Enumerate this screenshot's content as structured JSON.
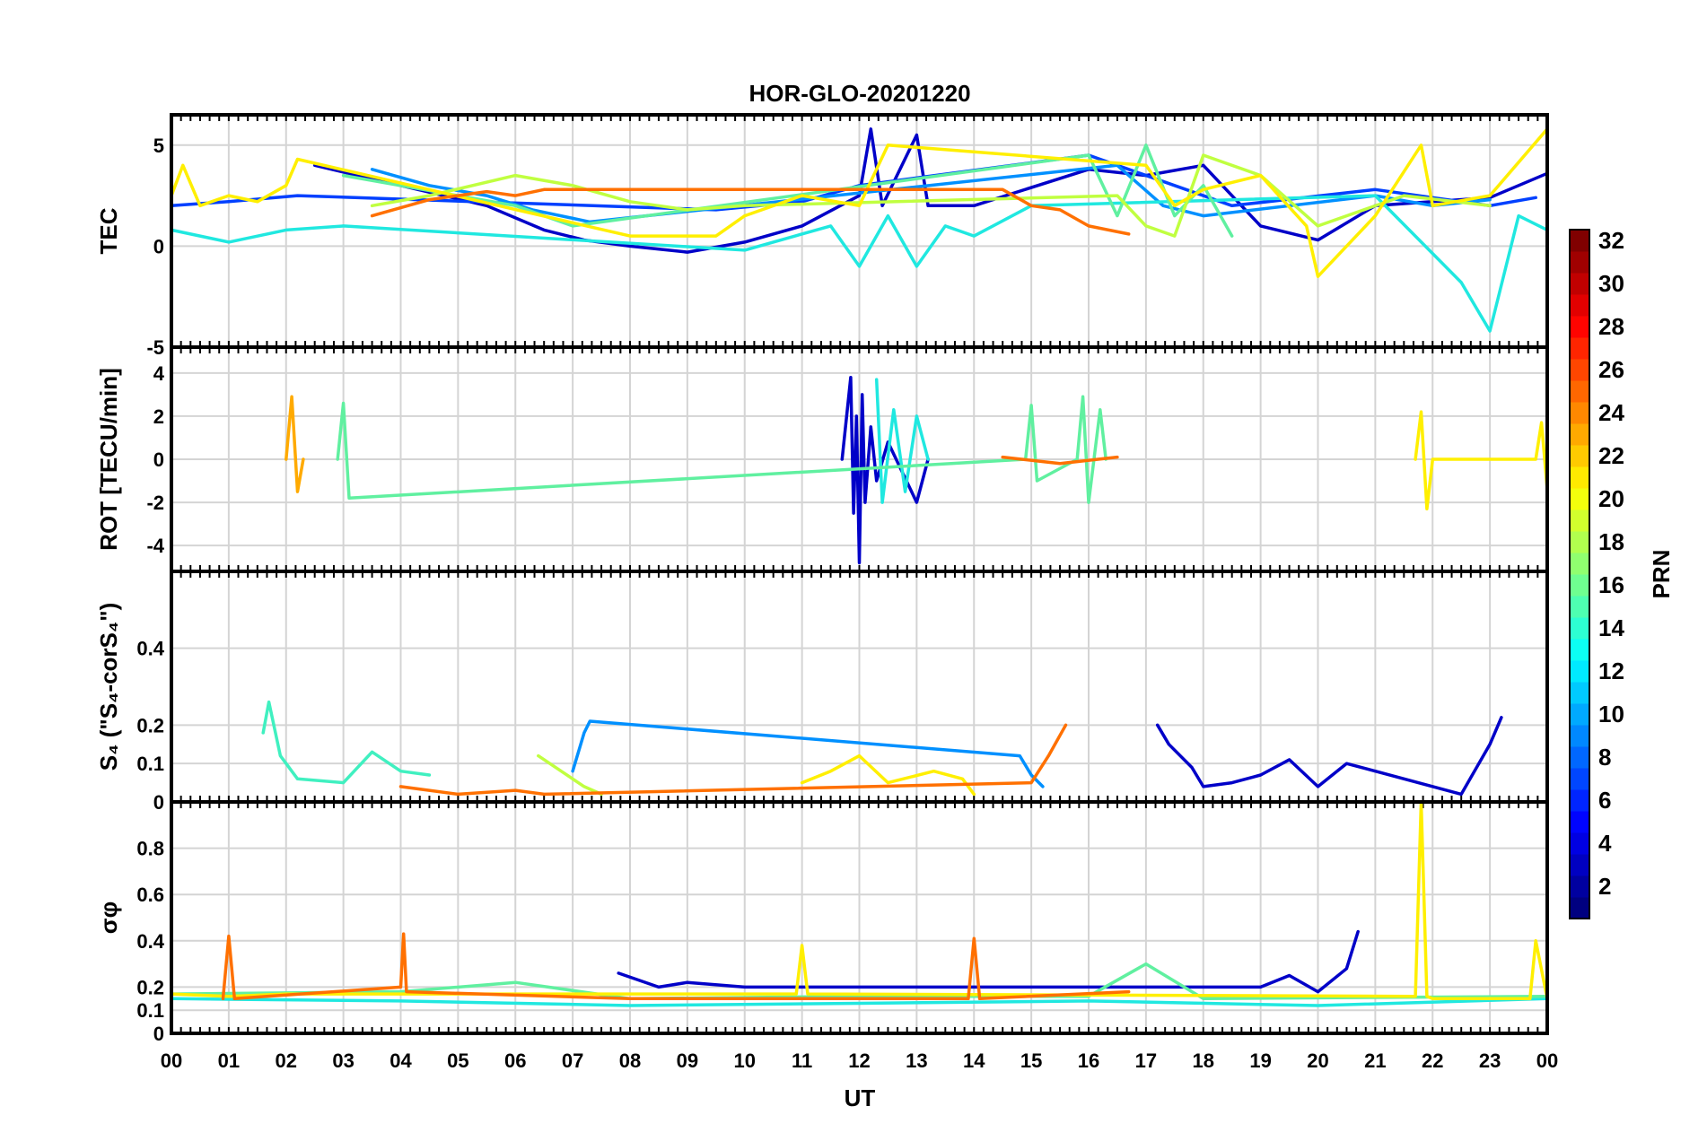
{
  "chart_data": {
    "type": "line",
    "title": "HOR-GLO-20201220",
    "xlabel": "UT",
    "x_ticks": [
      "00",
      "01",
      "02",
      "03",
      "04",
      "05",
      "06",
      "07",
      "08",
      "09",
      "10",
      "11",
      "12",
      "13",
      "14",
      "15",
      "16",
      "17",
      "18",
      "19",
      "20",
      "21",
      "22",
      "23",
      "00"
    ],
    "xlim_hours": [
      0,
      24
    ],
    "grid": true,
    "colorbar": {
      "label": "PRN",
      "range": [
        1,
        32
      ],
      "ticks": [
        "2",
        "4",
        "6",
        "8",
        "10",
        "12",
        "14",
        "16",
        "18",
        "20",
        "22",
        "24",
        "26",
        "28",
        "30",
        "32"
      ],
      "colormap": "jet"
    },
    "panels": [
      {
        "id": "tec",
        "ylabel": "TEC",
        "ylim": [
          -5,
          6.5
        ],
        "yticks": [
          {
            "v": -5,
            "label": "-5"
          },
          {
            "v": 0,
            "label": "0"
          },
          {
            "v": 5,
            "label": "5"
          }
        ],
        "series": [
          {
            "prn": 2,
            "color": "#0000c8",
            "x": [
              2.5,
              4.0,
              5.5,
              6.5,
              7.2,
              8.0,
              9.0,
              10.0,
              11.0,
              12.0,
              12.2,
              12.4,
              13.0,
              13.2,
              14.0,
              16.0,
              17.0,
              18.0,
              19.0,
              20.0,
              21.0,
              22.0,
              23.0,
              24.0
            ],
            "y": [
              4.0,
              3.0,
              2.0,
              0.8,
              0.3,
              0.0,
              -0.3,
              0.2,
              1.0,
              2.5,
              5.8,
              2.0,
              5.5,
              2.0,
              2.0,
              3.8,
              3.5,
              4.0,
              1.0,
              0.3,
              2.0,
              2.2,
              2.4,
              3.6
            ]
          },
          {
            "prn": 4,
            "color": "#0040ff",
            "x": [
              0.0,
              1.0,
              2.2,
              9.5,
              11.0,
              12.0,
              16.0,
              17.5,
              18.5,
              21.0,
              23.0,
              23.8
            ],
            "y": [
              2.0,
              2.2,
              2.5,
              1.8,
              2.2,
              3.0,
              4.5,
              3.0,
              2.0,
              2.8,
              2.0,
              2.4
            ]
          },
          {
            "prn": 8,
            "color": "#0090ff",
            "x": [
              3.5,
              4.5,
              5.5,
              6.3,
              7.3,
              16.5,
              17.3,
              18.0,
              21.0,
              22.0,
              23.0
            ],
            "y": [
              3.8,
              3.0,
              2.5,
              1.8,
              1.2,
              4.0,
              2.0,
              1.5,
              2.5,
              2.0,
              2.3
            ]
          },
          {
            "prn": 13,
            "color": "#20e8e0",
            "x": [
              0.0,
              0.5,
              1.0,
              2.0,
              3.0,
              10.0,
              11.5,
              12.0,
              12.5,
              13.0,
              13.5,
              14.0,
              15.0,
              21.0,
              22.5,
              23.0,
              23.5,
              24.0
            ],
            "y": [
              0.8,
              0.5,
              0.2,
              0.8,
              1.0,
              -0.2,
              1.0,
              -1.0,
              1.5,
              -1.0,
              1.0,
              0.5,
              2.0,
              2.5,
              -1.8,
              -4.2,
              1.5,
              0.8
            ]
          },
          {
            "prn": 16,
            "color": "#60f0a0",
            "x": [
              3.0,
              5.0,
              6.0,
              7.0,
              16.0,
              16.5,
              17.0,
              17.5,
              18.0,
              18.5
            ],
            "y": [
              3.5,
              2.5,
              2.0,
              1.0,
              4.5,
              1.5,
              5.0,
              1.5,
              3.0,
              0.5
            ]
          },
          {
            "prn": 18,
            "color": "#c0ff40",
            "x": [
              3.5,
              4.5,
              6.0,
              7.0,
              8.0,
              9.0,
              10.0,
              16.5,
              17.0,
              17.5,
              18.0,
              19.0,
              20.0,
              21.5,
              23.0
            ],
            "y": [
              2.0,
              2.5,
              3.5,
              3.0,
              2.2,
              1.8,
              2.0,
              2.5,
              1.0,
              0.5,
              4.5,
              3.5,
              1.0,
              2.5,
              2.0
            ]
          },
          {
            "prn": 20,
            "color": "#ffef00",
            "x": [
              0.0,
              0.2,
              0.5,
              1.0,
              1.5,
              2.0,
              2.2,
              8.0,
              9.5,
              10.0,
              11.0,
              12.0,
              12.5,
              17.0,
              17.5,
              18.0,
              19.0,
              19.8,
              20.0,
              21.0,
              21.8,
              22.0,
              23.0,
              24.0
            ],
            "y": [
              2.5,
              4.0,
              2.0,
              2.5,
              2.2,
              3.0,
              4.3,
              0.5,
              0.5,
              1.5,
              2.5,
              2.0,
              5.0,
              4.0,
              2.0,
              2.8,
              3.5,
              1.0,
              -1.5,
              1.5,
              5.0,
              2.0,
              2.5,
              5.8
            ]
          },
          {
            "prn": 23,
            "color": "#ff7000",
            "x": [
              3.5,
              4.5,
              5.5,
              6.0,
              6.5,
              14.5,
              15.0,
              15.5,
              16.0,
              16.7
            ],
            "y": [
              1.5,
              2.3,
              2.7,
              2.5,
              2.8,
              2.8,
              2.0,
              1.8,
              1.0,
              0.6
            ]
          }
        ]
      },
      {
        "id": "rot",
        "ylabel": "ROT [TECU/min]",
        "ylim": [
          -5.2,
          5.2
        ],
        "yticks": [
          {
            "v": -4,
            "label": "-4"
          },
          {
            "v": -2,
            "label": "-2"
          },
          {
            "v": 0,
            "label": "0"
          },
          {
            "v": 2,
            "label": "2"
          },
          {
            "v": 4,
            "label": "4"
          }
        ],
        "series": [
          {
            "prn": 2,
            "color": "#0000c8",
            "x": [
              11.7,
              11.85,
              11.9,
              11.95,
              12.0,
              12.05,
              12.1,
              12.2,
              12.3,
              12.5,
              13.0,
              13.2
            ],
            "y": [
              0.0,
              3.8,
              -2.5,
              2.0,
              -4.8,
              3.0,
              -2.0,
              1.5,
              -1.0,
              0.8,
              -2.0,
              0.0
            ]
          },
          {
            "prn": 13,
            "color": "#20e8e0",
            "x": [
              12.3,
              12.4,
              12.6,
              12.8,
              13.0,
              13.2
            ],
            "y": [
              3.7,
              -2.0,
              2.3,
              -1.5,
              2.0,
              0.0
            ]
          },
          {
            "prn": 16,
            "color": "#60f0a0",
            "x": [
              2.9,
              3.0,
              3.1,
              14.9,
              15.0,
              15.1,
              15.8,
              15.9,
              16.0,
              16.2,
              16.3
            ],
            "y": [
              0.0,
              2.6,
              -1.8,
              0.0,
              2.5,
              -1.0,
              0.0,
              2.9,
              -2.0,
              2.3,
              0.0
            ]
          },
          {
            "prn": 20,
            "color": "#ffef00",
            "x": [
              21.7,
              21.8,
              21.9,
              22.0,
              23.8,
              23.9,
              24.0
            ],
            "y": [
              0.0,
              2.2,
              -2.3,
              0.0,
              0.0,
              1.7,
              -1.4
            ]
          },
          {
            "prn": 22,
            "color": "#ffaa00",
            "x": [
              2.0,
              2.1,
              2.2,
              2.3
            ],
            "y": [
              0.0,
              2.9,
              -1.5,
              0.0
            ]
          },
          {
            "prn": 23,
            "color": "#ff7000",
            "x": [
              14.5,
              15.5,
              16.5
            ],
            "y": [
              0.1,
              -0.2,
              0.1
            ]
          }
        ]
      },
      {
        "id": "s4",
        "ylabel": "S₄ (\"S₄-corS₄\")",
        "ylim": [
          0,
          0.6
        ],
        "yticks": [
          {
            "v": 0,
            "label": "0"
          },
          {
            "v": 0.1,
            "label": "0.1"
          },
          {
            "v": 0.2,
            "label": "0.2"
          },
          {
            "v": 0.4,
            "label": "0.4"
          }
        ],
        "series": [
          {
            "prn": 2,
            "color": "#0000c8",
            "x": [
              17.2,
              17.4,
              17.8,
              18.0,
              18.5,
              19.0,
              19.5,
              20.0,
              20.5,
              21.0,
              22.5,
              23.0,
              23.2
            ],
            "y": [
              0.2,
              0.15,
              0.09,
              0.04,
              0.05,
              0.07,
              0.11,
              0.04,
              0.1,
              0.08,
              0.02,
              0.15,
              0.22
            ]
          },
          {
            "prn": 8,
            "color": "#0090ff",
            "x": [
              7.0,
              7.2,
              7.3,
              14.8,
              15.0,
              15.2
            ],
            "y": [
              0.08,
              0.18,
              0.21,
              0.12,
              0.07,
              0.04
            ]
          },
          {
            "prn": 15,
            "color": "#40f0c0",
            "x": [
              1.6,
              1.7,
              1.9,
              2.2,
              3.0,
              3.5,
              4.0,
              4.5
            ],
            "y": [
              0.18,
              0.26,
              0.12,
              0.06,
              0.05,
              0.13,
              0.08,
              0.07
            ]
          },
          {
            "prn": 18,
            "color": "#c0ff40",
            "x": [
              6.4,
              6.8,
              7.2,
              7.5
            ],
            "y": [
              0.12,
              0.08,
              0.04,
              0.02
            ]
          },
          {
            "prn": 20,
            "color": "#ffef00",
            "x": [
              11.0,
              11.5,
              12.0,
              12.5,
              13.3,
              13.8,
              14.0
            ],
            "y": [
              0.05,
              0.08,
              0.12,
              0.05,
              0.08,
              0.06,
              0.02
            ]
          },
          {
            "prn": 23,
            "color": "#ff7000",
            "x": [
              4.0,
              5.0,
              6.0,
              6.5,
              15.0,
              15.3,
              15.6
            ],
            "y": [
              0.04,
              0.02,
              0.03,
              0.02,
              0.05,
              0.12,
              0.2
            ]
          }
        ]
      },
      {
        "id": "sigma",
        "ylabel": "σφ",
        "ylim": [
          0,
          1.0
        ],
        "yticks": [
          {
            "v": 0,
            "label": "0"
          },
          {
            "v": 0.1,
            "label": "0.1"
          },
          {
            "v": 0.2,
            "label": "0.2"
          },
          {
            "v": 0.4,
            "label": "0.4"
          },
          {
            "v": 0.6,
            "label": "0.6"
          },
          {
            "v": 0.8,
            "label": "0.8"
          }
        ],
        "series": [
          {
            "prn": 2,
            "color": "#0000c8",
            "x": [
              7.8,
              8.5,
              9.0,
              10.0,
              19.0,
              19.5,
              20.0,
              20.5,
              20.7
            ],
            "y": [
              0.26,
              0.2,
              0.22,
              0.2,
              0.2,
              0.25,
              0.18,
              0.28,
              0.44
            ]
          },
          {
            "prn": 13,
            "color": "#20e8e0",
            "x": [
              0.0,
              4.0,
              8.0,
              12.0,
              16.0,
              20.0,
              24.0
            ],
            "y": [
              0.15,
              0.14,
              0.12,
              0.13,
              0.14,
              0.12,
              0.15
            ]
          },
          {
            "prn": 16,
            "color": "#60f0a0",
            "x": [
              0.0,
              4.0,
              6.0,
              8.0,
              12.0,
              16.0,
              17.0,
              18.0,
              24.0
            ],
            "y": [
              0.17,
              0.18,
              0.22,
              0.15,
              0.16,
              0.16,
              0.3,
              0.15,
              0.16
            ]
          },
          {
            "prn": 20,
            "color": "#ffef00",
            "x": [
              0.0,
              1.0,
              2.0,
              10.9,
              11.0,
              11.1,
              21.7,
              21.8,
              21.9,
              22.0,
              23.7,
              23.8,
              24.0
            ],
            "y": [
              0.17,
              0.16,
              0.17,
              0.17,
              0.38,
              0.17,
              0.16,
              1.0,
              0.16,
              0.15,
              0.15,
              0.4,
              0.15
            ]
          },
          {
            "prn": 23,
            "color": "#ff7000",
            "x": [
              0.9,
              1.0,
              1.1,
              4.0,
              4.05,
              4.1,
              8.0,
              13.9,
              14.0,
              14.1,
              16.7
            ],
            "y": [
              0.15,
              0.42,
              0.15,
              0.2,
              0.43,
              0.18,
              0.15,
              0.15,
              0.41,
              0.15,
              0.18
            ]
          }
        ]
      }
    ]
  }
}
